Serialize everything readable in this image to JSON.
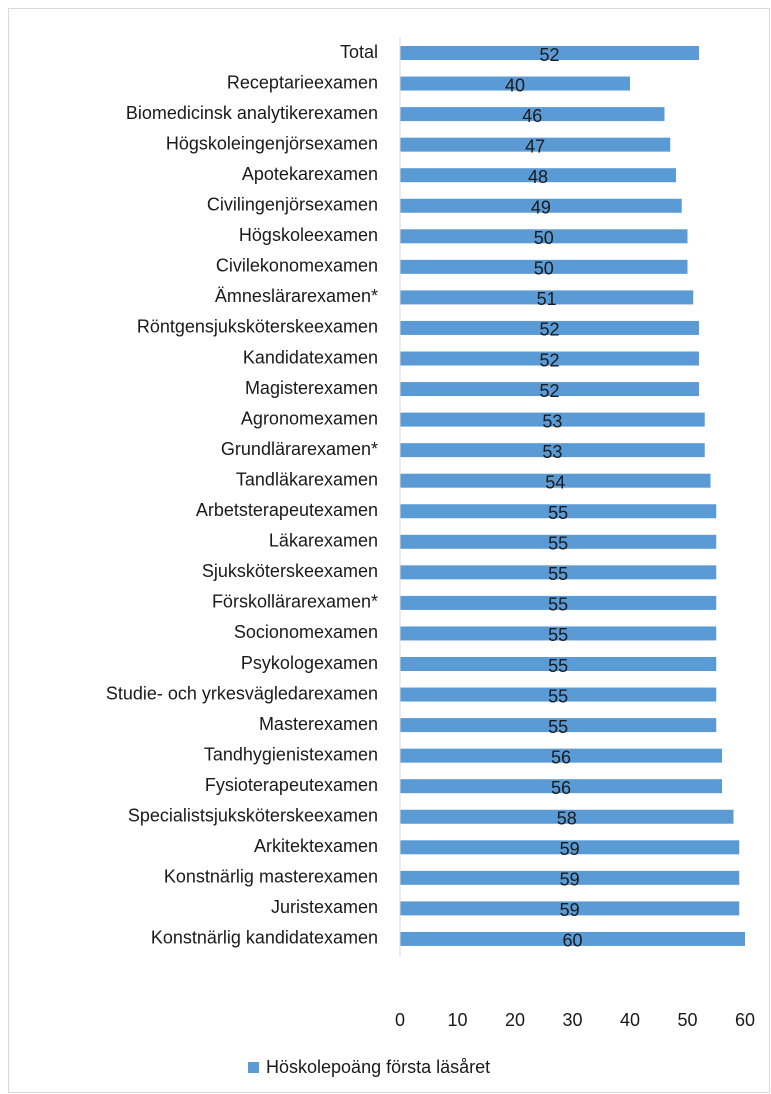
{
  "chart_data": {
    "type": "barh",
    "categories": [
      "Total",
      "Receptarieexamen",
      "Biomedicinsk analytikerexamen",
      "Högskoleingenjörsexamen",
      "Apotekarexamen",
      "Civilingenjörsexamen",
      "Högskoleexamen",
      "Civilekonomexamen",
      "Ämneslärarexamen*",
      "Röntgensjuksköterskeexamen",
      "Kandidatexamen",
      "Magisterexamen",
      "Agronomexamen",
      "Grundlärarexamen*",
      "Tandläkarexamen",
      "Arbetsterapeutexamen",
      "Läkarexamen",
      "Sjuksköterskeexamen",
      "Förskollärarexamen*",
      "Socionomexamen",
      "Psykologexamen",
      "Studie- och yrkesvägledarexamen",
      "Masterexamen",
      "Tandhygienistexamen",
      "Fysioterapeutexamen",
      "Specialistsjuksköterskeexamen",
      "Arkitektexamen",
      "Konstnärlig masterexamen",
      "Juristexamen",
      "Konstnärlig kandidatexamen"
    ],
    "series": [
      {
        "name": "Höskolepoäng första läsåret",
        "color": "#5b9bd5",
        "values": [
          52,
          40,
          46,
          47,
          48,
          49,
          50,
          50,
          51,
          52,
          52,
          52,
          53,
          53,
          54,
          55,
          55,
          55,
          55,
          55,
          55,
          55,
          55,
          56,
          56,
          58,
          59,
          59,
          59,
          60
        ]
      }
    ],
    "xlim": [
      0,
      60
    ],
    "xticks": [
      0,
      10,
      20,
      30,
      40,
      50,
      60
    ],
    "legend": "bottom",
    "grid": false
  }
}
